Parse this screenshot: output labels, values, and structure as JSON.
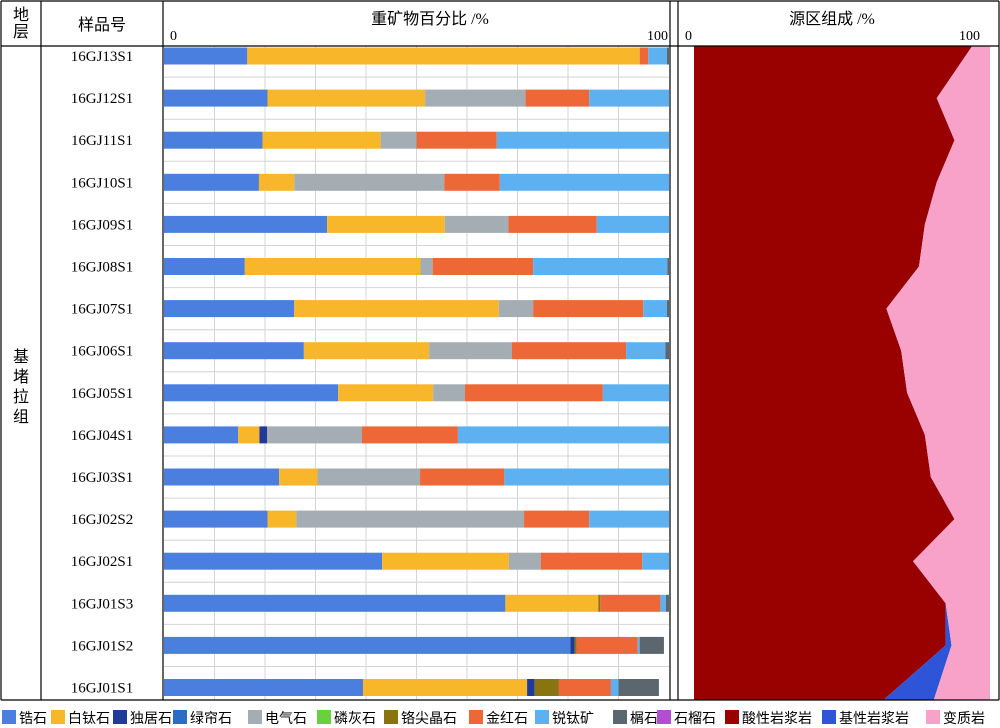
{
  "header": {
    "col_stratum": "地层",
    "col_sample": "样品号",
    "col_minerals": "重矿物百分比 /%",
    "col_source": "源区组成 /%",
    "min_zero": "0",
    "min_hundred": "100",
    "src_zero": "0",
    "src_hundred": "100",
    "stratum_name": "基堵拉组"
  },
  "chart_data": [
    {
      "type": "bar",
      "subtype": "stacked-horizontal-100",
      "title": "重矿物百分比 /%",
      "xlim": [
        0,
        100
      ],
      "grid": true,
      "legend_position": "bottom",
      "categories": [
        "16GJ13S1",
        "16GJ12S1",
        "16GJ11S1",
        "16GJ10S1",
        "16GJ09S1",
        "16GJ08S1",
        "16GJ07S1",
        "16GJ06S1",
        "16GJ05S1",
        "16GJ04S1",
        "16GJ03S1",
        "16GJ02S2",
        "16GJ02S1",
        "16GJ01S3",
        "16GJ01S2",
        "16GJ01S1"
      ],
      "series": [
        {
          "name": "锆石",
          "color": "#4a7fe0",
          "values": [
            16.5,
            20.5,
            19.5,
            18.8,
            32.3,
            16.0,
            25.8,
            27.7,
            34.5,
            14.7,
            22.8,
            20.5,
            43.2,
            67.6,
            80.5,
            39.4
          ]
        },
        {
          "name": "白钛石",
          "color": "#f8b62b",
          "values": [
            77.7,
            31.2,
            23.4,
            7.0,
            23.3,
            34.8,
            40.5,
            24.8,
            18.8,
            4.2,
            7.6,
            5.7,
            25.1,
            18.4,
            0.0,
            32.5
          ]
        },
        {
          "name": "独居石",
          "color": "#1f3a99",
          "values": [
            0,
            0,
            0,
            0,
            0,
            0,
            0,
            0,
            0,
            1.5,
            0,
            0,
            0,
            0,
            0.8,
            1.5
          ]
        },
        {
          "name": "绿帘石",
          "color": "#2b6cc4",
          "values": [
            0,
            0,
            0,
            0,
            0,
            0,
            0,
            0,
            0,
            0,
            0,
            0,
            0,
            0,
            0,
            0
          ]
        },
        {
          "name": "电气石",
          "color": "#a4adb3",
          "values": [
            0,
            19.9,
            7.1,
            29.7,
            12.6,
            2.4,
            6.8,
            16.4,
            6.3,
            18.8,
            20.3,
            45.1,
            6.3,
            0,
            0,
            0
          ]
        },
        {
          "name": "磷灰石",
          "color": "#6ad13e",
          "values": [
            0,
            0,
            0,
            0,
            0,
            0,
            0,
            0,
            0,
            0,
            0,
            0,
            0,
            0,
            0,
            0
          ]
        },
        {
          "name": "铬尖晶石",
          "color": "#8a7410",
          "values": [
            0,
            0,
            0,
            0,
            0,
            0,
            0,
            0,
            0,
            0,
            0,
            0,
            0,
            0.4,
            0.4,
            4.8
          ]
        },
        {
          "name": "金红石",
          "color": "#ee6737",
          "values": [
            1.7,
            12.6,
            15.9,
            11.0,
            17.5,
            19.9,
            21.8,
            22.6,
            27.3,
            19.0,
            16.7,
            12.9,
            20.1,
            11.9,
            12.1,
            10.3
          ]
        },
        {
          "name": "锐钛矿",
          "color": "#5eb1f0",
          "values": [
            3.7,
            15.8,
            34.1,
            33.5,
            14.3,
            26.6,
            4.7,
            7.8,
            13.1,
            41.8,
            32.6,
            15.8,
            5.3,
            1.1,
            0.4,
            1.5
          ]
        },
        {
          "name": "榍石",
          "color": "#5c666e",
          "values": [
            0.4,
            0,
            0,
            0,
            0,
            0.3,
            0.4,
            0.7,
            0,
            0,
            0,
            0,
            0,
            0.6,
            4.8,
            8.0
          ]
        },
        {
          "name": "石榴石",
          "color": "#b24fd1",
          "values": [
            0,
            0,
            0,
            0,
            0,
            0,
            0,
            0,
            0,
            0,
            0,
            0,
            0,
            0,
            0,
            0
          ]
        }
      ]
    },
    {
      "type": "area",
      "subtype": "stacked-100",
      "title": "源区组成 /%",
      "xlim": [
        0,
        100
      ],
      "grid": false,
      "categories": [
        "16GJ13S1",
        "16GJ12S1",
        "16GJ11S1",
        "16GJ10S1",
        "16GJ09S1",
        "16GJ08S1",
        "16GJ07S1",
        "16GJ06S1",
        "16GJ05S1",
        "16GJ04S1",
        "16GJ03S1",
        "16GJ02S2",
        "16GJ02S1",
        "16GJ01S3",
        "16GJ01S2",
        "16GJ01S1"
      ],
      "series": [
        {
          "name": "酸性岩浆岩",
          "color": "#990000",
          "values": [
            94,
            82,
            88,
            82,
            78,
            76,
            65,
            70,
            72,
            78,
            80,
            88,
            74,
            85,
            85,
            64
          ]
        },
        {
          "name": "基性岩浆岩",
          "color": "#2e55d8",
          "values": [
            0,
            0,
            0,
            0,
            0,
            0,
            0,
            0,
            0,
            0,
            0,
            0,
            0,
            0,
            2,
            17
          ]
        },
        {
          "name": "变质岩",
          "color": "#f9a2c9",
          "values": [
            6,
            18,
            12,
            18,
            22,
            24,
            35,
            30,
            28,
            22,
            20,
            12,
            26,
            15,
            13,
            19
          ]
        }
      ]
    }
  ]
}
